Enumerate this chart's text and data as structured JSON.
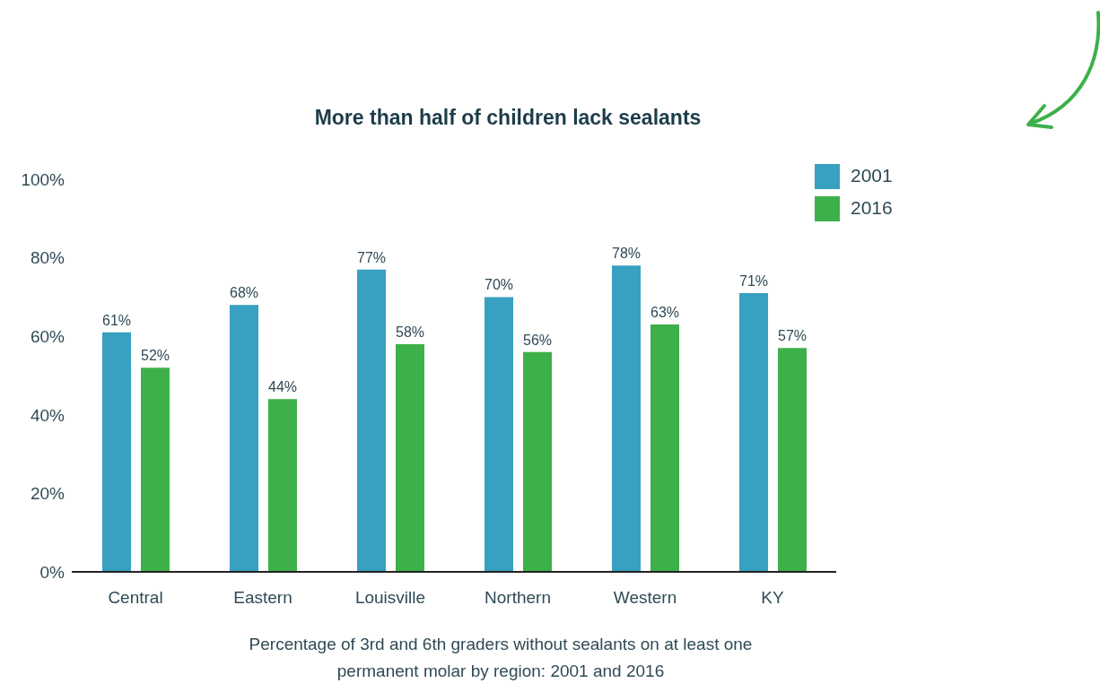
{
  "chart_data": {
    "type": "bar",
    "title": "More than half of children lack sealants",
    "categories": [
      "Central",
      "Eastern",
      "Louisville",
      "Northern",
      "Western",
      "KY"
    ],
    "series": [
      {
        "name": "2001",
        "color": "#38a0c1",
        "values": [
          61,
          68,
          77,
          70,
          78,
          71
        ],
        "value_labels": [
          "61%",
          "68%",
          "77%",
          "70%",
          "78%",
          "71%"
        ]
      },
      {
        "name": "2016",
        "color": "#3eb04a",
        "values": [
          52,
          44,
          58,
          56,
          63,
          57
        ],
        "value_labels": [
          "52%",
          "44%",
          "58%",
          "56%",
          "63%",
          "57%"
        ]
      }
    ],
    "ylim": [
      0,
      100
    ],
    "yticks": [
      {
        "value": 0,
        "label": "0%"
      },
      {
        "value": 20,
        "label": "20%"
      },
      {
        "value": 40,
        "label": "40%"
      },
      {
        "value": 60,
        "label": "60%"
      },
      {
        "value": 80,
        "label": "80%"
      },
      {
        "value": 100,
        "label": "100%"
      }
    ],
    "grid": false,
    "legend": "top right",
    "annotations": [
      "Percentage of 3rd and 6th graders without sealants on at least one permanent molar by region: 2001 and 2016"
    ]
  }
}
